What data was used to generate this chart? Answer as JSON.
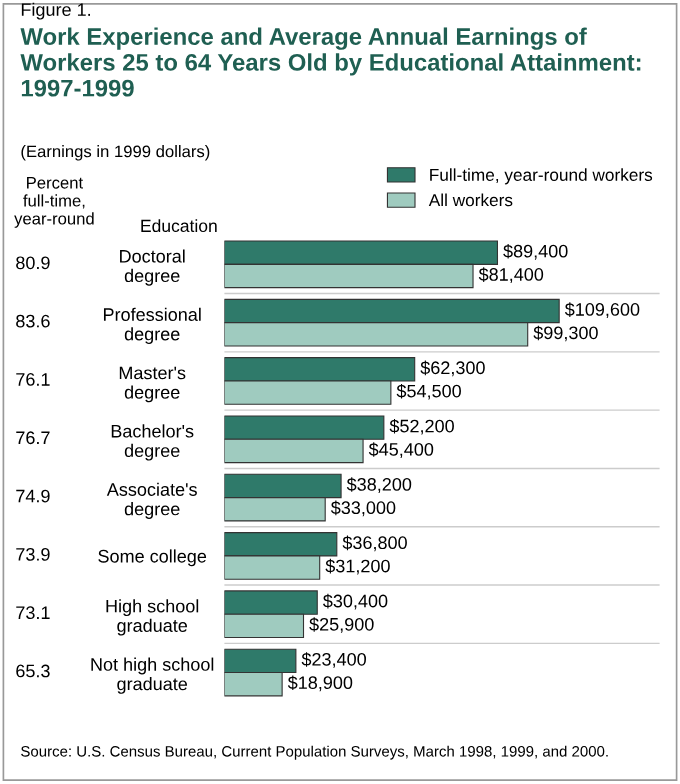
{
  "chart_data": {
    "type": "bar",
    "orientation": "horizontal",
    "title": "Work Experience and Average Annual Earnings of Workers 25 to 64 Years Old by Educational Attainment: 1997-1999",
    "subtitle": "(Earnings in 1999 dollars)",
    "categories": [
      "Doctoral\ndegree",
      "Professional\ndegree",
      "Master's\ndegree",
      "Bachelor's\ndegree",
      "Associate's\ndegree",
      "Some college",
      "High school\ngraduate",
      "Not high school\ngraduate"
    ],
    "series": [
      {
        "name": "Full-time, year-round workers",
        "color": "#2f7a6a",
        "values": [
          89400,
          109600,
          62300,
          52200,
          38200,
          36800,
          30400,
          23400
        ],
        "value_labels": [
          "$89,400",
          "$109,600",
          "$62,300",
          "$52,200",
          "$38,200",
          "$36,800",
          "$30,400",
          "$23,400"
        ]
      },
      {
        "name": "All workers",
        "color": "#9fcbbf",
        "values": [
          81400,
          99300,
          54500,
          45400,
          33000,
          31200,
          25900,
          18900
        ],
        "value_labels": [
          "$81,400",
          "$99,300",
          "$54,500",
          "$45,400",
          "$33,000",
          "$31,200",
          "$25,900",
          "$18,900"
        ]
      }
    ],
    "legend": "top right",
    "annotations": [
      "Figure 1.",
      "Percent\nfull-time,\nyear-round",
      "Education",
      "80.9",
      "83.6",
      "76.1",
      "76.7",
      "74.9",
      "73.9",
      "73.1",
      "65.3",
      "Source: U.S. Census Bureau, Current Population Surveys, March 1998, 1999, and 2000."
    ]
  }
}
